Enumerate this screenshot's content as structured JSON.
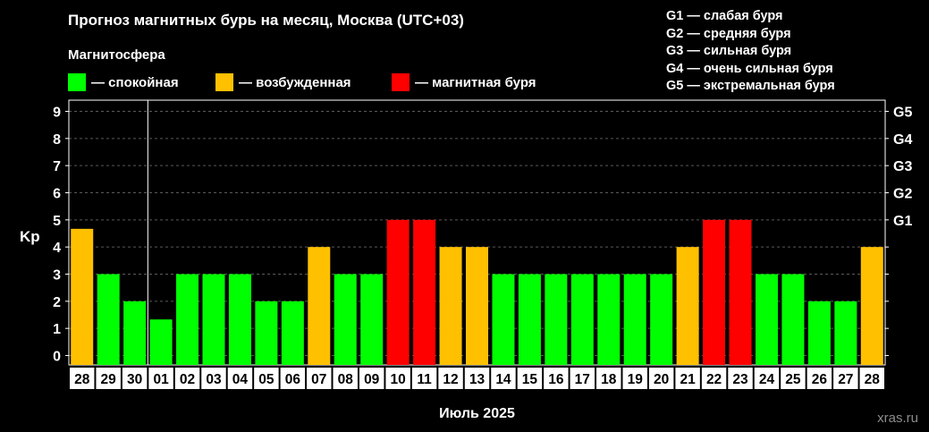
{
  "header": {
    "title": "Прогноз магнитных бурь на месяц, Москва (UTC+03)"
  },
  "legend": {
    "title": "Магнитосфера",
    "items": [
      {
        "label": "— спокойная",
        "color": "#00ff00"
      },
      {
        "label": "— возбужденная",
        "color": "#ffc000"
      },
      {
        "label": "— магнитная буря",
        "color": "#ff0000"
      }
    ]
  },
  "g_legend": [
    "G1 — слабая буря",
    "G2 — средняя буря",
    "G3 — сильная буря",
    "G4 — очень сильная буря",
    "G5 — экстремальная буря"
  ],
  "watermark": "xras.ru",
  "colors": {
    "calm": "#00ff00",
    "excited": "#ffc000",
    "storm": "#ff0000",
    "background": "#000000"
  },
  "chart_data": {
    "type": "bar",
    "title": "Прогноз магнитных бурь на месяц, Москва (UTC+03)",
    "xlabel": "Июль 2025",
    "ylabel": "Kp",
    "ylim": [
      0,
      9
    ],
    "yticks": [
      0,
      1,
      2,
      3,
      4,
      5,
      6,
      7,
      8,
      9
    ],
    "right_axis_labels": [
      {
        "value": 5,
        "label": "G1"
      },
      {
        "value": 6,
        "label": "G2"
      },
      {
        "value": 7,
        "label": "G3"
      },
      {
        "value": 8,
        "label": "G4"
      },
      {
        "value": 9,
        "label": "G5"
      }
    ],
    "grid": "horizontal dashed",
    "month_separator_after_index": 2,
    "categories": [
      "28",
      "29",
      "30",
      "01",
      "02",
      "03",
      "04",
      "05",
      "06",
      "07",
      "08",
      "09",
      "10",
      "11",
      "12",
      "13",
      "14",
      "15",
      "16",
      "17",
      "18",
      "19",
      "20",
      "21",
      "22",
      "23",
      "24",
      "25",
      "26",
      "27",
      "28"
    ],
    "values": [
      4.67,
      3,
      2,
      1.33,
      3,
      3,
      3,
      2,
      2,
      4,
      3,
      3,
      5,
      5,
      4,
      4,
      3,
      3,
      3,
      3,
      3,
      3,
      3,
      4,
      5,
      5,
      3,
      3,
      2,
      2,
      4
    ],
    "levels": [
      "excited",
      "calm",
      "calm",
      "calm",
      "calm",
      "calm",
      "calm",
      "calm",
      "calm",
      "excited",
      "calm",
      "calm",
      "storm",
      "storm",
      "excited",
      "excited",
      "calm",
      "calm",
      "calm",
      "calm",
      "calm",
      "calm",
      "calm",
      "excited",
      "storm",
      "storm",
      "calm",
      "calm",
      "calm",
      "calm",
      "excited"
    ]
  }
}
